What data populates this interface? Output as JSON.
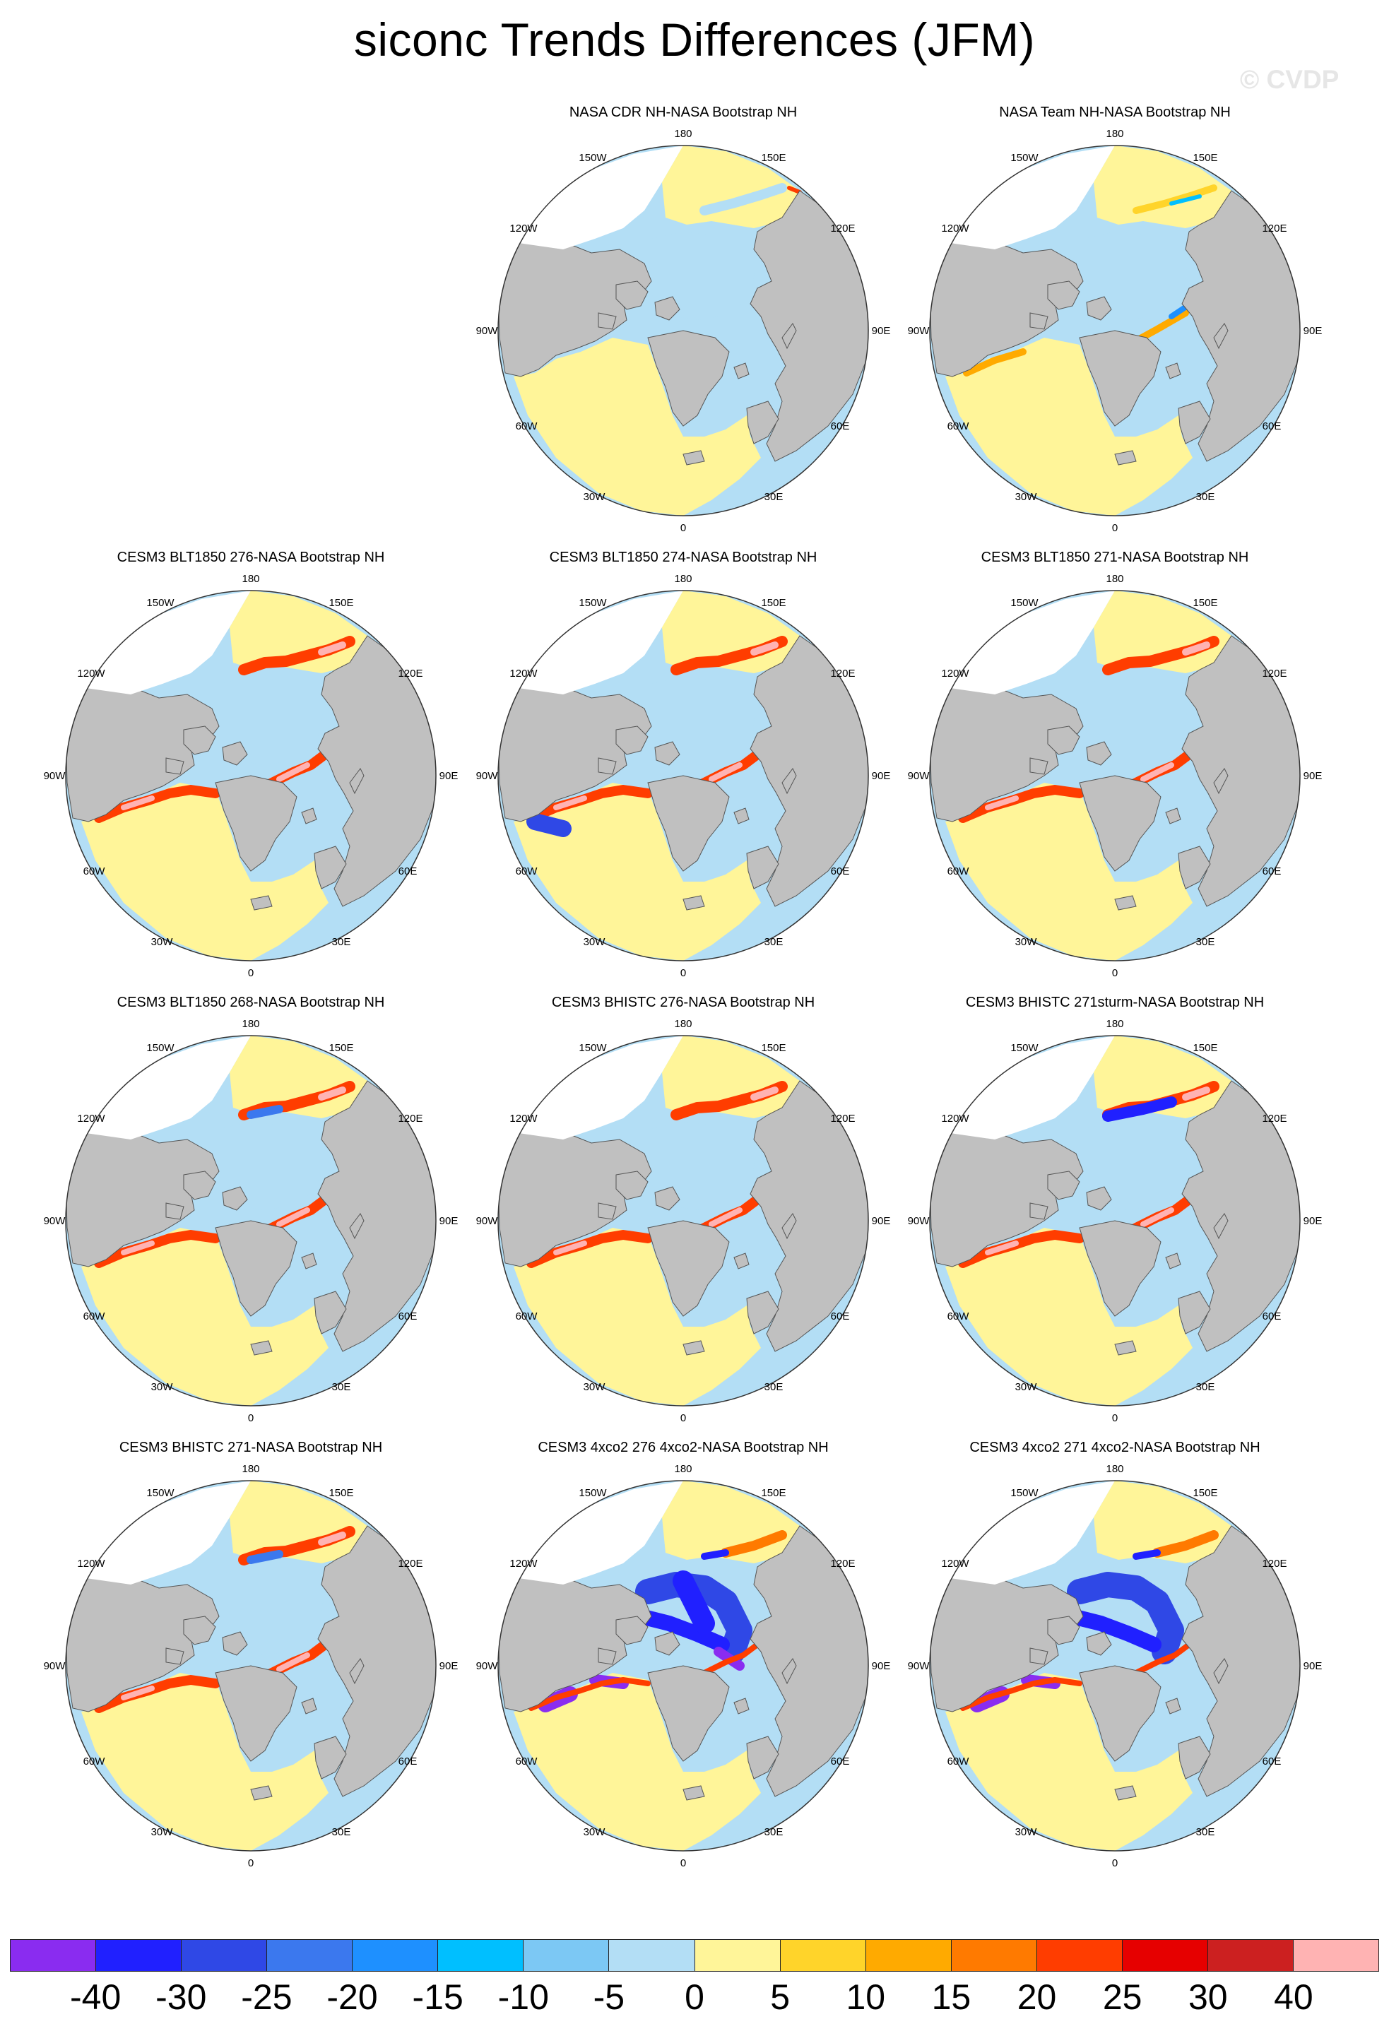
{
  "title": "siconc Trends Differences (JFM)",
  "watermark": "© CVDP",
  "lon_labels": {
    "top": "180",
    "bottom": "0",
    "w150": "150W",
    "e150": "150E",
    "w120": "120W",
    "e120": "120E",
    "w90": "90W",
    "e90": "90E",
    "w60": "60W",
    "e60": "60E",
    "w30": "30W",
    "e30": "30E"
  },
  "panels": [
    {
      "title": "NASA CDR NH-NASA Bootstrap NH",
      "row": 0,
      "col": 1,
      "pattern": "cdr"
    },
    {
      "title": "NASA Team NH-NASA Bootstrap NH",
      "row": 0,
      "col": 2,
      "pattern": "team"
    },
    {
      "title": "CESM3 BLT1850 276-NASA Bootstrap NH",
      "row": 1,
      "col": 0,
      "pattern": "warm"
    },
    {
      "title": "CESM3 BLT1850 274-NASA Bootstrap NH",
      "row": 1,
      "col": 1,
      "pattern": "warm_bluelab"
    },
    {
      "title": "CESM3 BLT1850 271-NASA Bootstrap NH",
      "row": 1,
      "col": 2,
      "pattern": "warm"
    },
    {
      "title": "CESM3 BLT1850 268-NASA Bootstrap NH",
      "row": 2,
      "col": 0,
      "pattern": "warm_bluepac"
    },
    {
      "title": "CESM3 BHISTC 276-NASA Bootstrap NH",
      "row": 2,
      "col": 1,
      "pattern": "warm"
    },
    {
      "title": "CESM3 BHISTC 271sturm-NASA Bootstrap NH",
      "row": 2,
      "col": 2,
      "pattern": "warm_bluepac_strong"
    },
    {
      "title": "CESM3 BHISTC 271-NASA Bootstrap NH",
      "row": 3,
      "col": 0,
      "pattern": "warm_bluepac"
    },
    {
      "title": "CESM3 4xco2 276 4xco2-NASA Bootstrap NH",
      "row": 3,
      "col": 1,
      "pattern": "co2_strong"
    },
    {
      "title": "CESM3 4xco2 271 4xco2-NASA Bootstrap NH",
      "row": 3,
      "col": 2,
      "pattern": "co2"
    }
  ],
  "colorbar": {
    "labels": [
      "-40",
      "-30",
      "-25",
      "-20",
      "-15",
      "-10",
      "-5",
      "0",
      "5",
      "10",
      "15",
      "20",
      "25",
      "30",
      "40"
    ],
    "colors": [
      "#8a2cf0",
      "#2020ff",
      "#2f48e6",
      "#3b78ee",
      "#1e90ff",
      "#00bfff",
      "#7cc8f4",
      "#b3def5",
      "#fff599",
      "#ffd42a",
      "#ffaa00",
      "#ff7a00",
      "#ff3d00",
      "#e60000",
      "#cc2020",
      "#ffb3b3"
    ]
  },
  "colors": {
    "land": "#c0c0c0",
    "ocean_missing": "#ffffff",
    "outline": "#555555"
  }
}
